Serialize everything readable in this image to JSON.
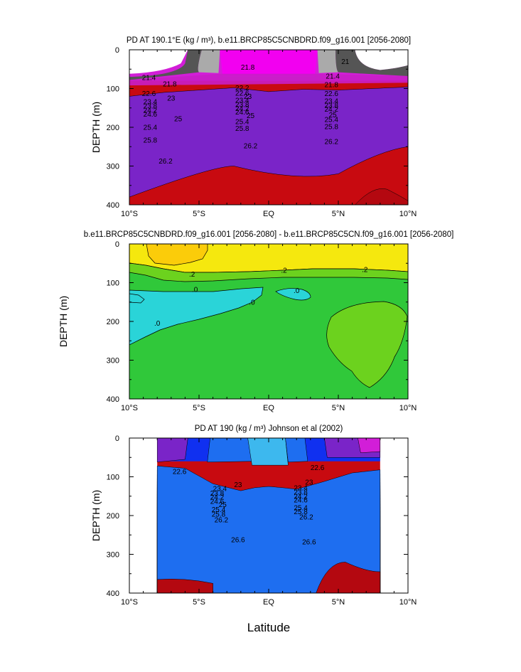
{
  "figure": {
    "xlabel": "Latitude",
    "palette": [
      "#7a24c8",
      "#3b28d2",
      "#1030f0",
      "#1e6ef0",
      "#2f95f2",
      "#3db8ee",
      "#2ad4d8",
      "#16d4a8",
      "#18c878",
      "#30c83a",
      "#6cd21e",
      "#a6dc16",
      "#d8e612",
      "#f5e80e",
      "#fbcc0a",
      "#fbac0a",
      "#fa8c0c",
      "#f86a0e",
      "#f04414",
      "#e01c14",
      "#c80a10"
    ]
  },
  "chart_data": [
    {
      "type": "contour",
      "title": "PD AT 190.1°E (kg / m³), b.e11.BRCP85C5CNBDRD.f09_g16.001 [2056-2080]",
      "ylabel": "DEPTH (m)",
      "xlim": [
        -10,
        10
      ],
      "ylim": [
        400,
        0
      ],
      "xticks": [
        "10°S",
        "5°S",
        "EQ",
        "5°N",
        "10°N"
      ],
      "yticks": [
        "0",
        "100",
        "200",
        "300",
        "400"
      ],
      "levels": [
        21,
        21.4,
        21.8,
        22.2,
        22.6,
        23,
        23.4,
        23.8,
        24.2,
        24.6,
        25,
        25.4,
        25.8,
        26.2
      ],
      "base_depth": {
        "x": [
          -10,
          -7.5,
          -5,
          -2.5,
          0,
          2.5,
          5,
          7.5,
          10
        ],
        "d": [
          120,
          110,
          104,
          98,
          108,
          102,
          104,
          100,
          96
        ]
      },
      "gap": 8,
      "contour_labels": [
        {
          "text": "21.8",
          "x": -1.5,
          "y": 45
        },
        {
          "text": "21",
          "x": 5.5,
          "y": 30
        },
        {
          "text": "21.4",
          "x": -8.6,
          "y": 72
        },
        {
          "text": "21.4",
          "x": 4.6,
          "y": 68
        },
        {
          "text": "21.8",
          "x": -7.1,
          "y": 88
        },
        {
          "text": "21.8",
          "x": 4.5,
          "y": 90
        },
        {
          "text": "22.2",
          "x": -1.9,
          "y": 98
        },
        {
          "text": "22.6",
          "x": -8.6,
          "y": 113
        },
        {
          "text": "22.6",
          "x": -1.9,
          "y": 112
        },
        {
          "text": "22.6",
          "x": 4.5,
          "y": 113
        },
        {
          "text": "23",
          "x": -7.0,
          "y": 125
        },
        {
          "text": "23",
          "x": -1.5,
          "y": 120
        },
        {
          "text": "23.4",
          "x": -8.5,
          "y": 134
        },
        {
          "text": "23.4",
          "x": -1.9,
          "y": 130
        },
        {
          "text": "23.4",
          "x": 4.5,
          "y": 132
        },
        {
          "text": "23.8",
          "x": -8.5,
          "y": 145
        },
        {
          "text": "23.8",
          "x": -1.9,
          "y": 141
        },
        {
          "text": "23.8",
          "x": 4.5,
          "y": 143
        },
        {
          "text": "24.2",
          "x": -8.5,
          "y": 156
        },
        {
          "text": "24.2",
          "x": -1.9,
          "y": 151
        },
        {
          "text": "24.2",
          "x": 4.5,
          "y": 153
        },
        {
          "text": "24.6",
          "x": -8.5,
          "y": 166
        },
        {
          "text": "24.6",
          "x": -1.9,
          "y": 161
        },
        {
          "text": "25",
          "x": -6.5,
          "y": 178
        },
        {
          "text": "25",
          "x": -1.3,
          "y": 170
        },
        {
          "text": "25",
          "x": 4.6,
          "y": 168
        },
        {
          "text": "25.4",
          "x": -8.5,
          "y": 200
        },
        {
          "text": "25.4",
          "x": -1.9,
          "y": 185
        },
        {
          "text": "25.4",
          "x": 4.5,
          "y": 180
        },
        {
          "text": "25.8",
          "x": -8.5,
          "y": 233
        },
        {
          "text": "25.8",
          "x": -1.9,
          "y": 203
        },
        {
          "text": "25.8",
          "x": 4.5,
          "y": 198
        },
        {
          "text": "26.2",
          "x": -7.4,
          "y": 287
        },
        {
          "text": "26.2",
          "x": -1.3,
          "y": 248
        },
        {
          "text": "26.2",
          "x": 4.5,
          "y": 237
        }
      ]
    },
    {
      "type": "contour",
      "title": "b.e11.BRCP85C5CNBDRD.f09_g16.001 [2056-2080] - b.e11.BRCP85C5CN.f09_g16.001 [2056-2080]",
      "ylabel": "DEPTH (m)",
      "xlim": [
        -10,
        10
      ],
      "ylim": [
        400,
        0
      ],
      "xticks": [
        "10°S",
        "5°S",
        "EQ",
        "5°N",
        "10°N"
      ],
      "yticks": [
        "0",
        "100",
        "200",
        "300",
        "400"
      ],
      "contour_labels": [
        {
          "text": ".2",
          "x": -5.5,
          "y": 78
        },
        {
          "text": ".2",
          "x": 1.1,
          "y": 68
        },
        {
          "text": ".2",
          "x": 6.9,
          "y": 66
        },
        {
          "text": ".0",
          "x": -5.3,
          "y": 117
        },
        {
          "text": ".0",
          "x": 2.0,
          "y": 120
        },
        {
          "text": ".0",
          "x": -1.2,
          "y": 150
        },
        {
          "text": ".0",
          "x": -8.0,
          "y": 205
        }
      ]
    },
    {
      "type": "contour",
      "title": "PD AT 190 (kg / m³) Johnson et al (2002)",
      "ylabel": "DEPTH (m)",
      "xlim": [
        -10,
        10
      ],
      "ylim": [
        400,
        0
      ],
      "xticks": [
        "10°S",
        "5°S",
        "EQ",
        "5°N",
        "10°N"
      ],
      "yticks": [
        "0",
        "100",
        "200",
        "300",
        "400"
      ],
      "data_xrange": [
        -8,
        8
      ],
      "levels": [
        21,
        21.4,
        21.8,
        22.2,
        22.6,
        23,
        23.4,
        23.8,
        24.2,
        24.6,
        25,
        25.4,
        25.8,
        26.2,
        26.6
      ],
      "contour_labels": [
        {
          "text": "22.6",
          "x": -6.4,
          "y": 86
        },
        {
          "text": "22.6",
          "x": 3.5,
          "y": 76
        },
        {
          "text": "23",
          "x": -2.2,
          "y": 120
        },
        {
          "text": "23",
          "x": 2.9,
          "y": 114
        },
        {
          "text": "23.4",
          "x": -3.5,
          "y": 130
        },
        {
          "text": "23.4",
          "x": 2.3,
          "y": 128
        },
        {
          "text": "23.8",
          "x": -3.7,
          "y": 142
        },
        {
          "text": "23.8",
          "x": 2.3,
          "y": 139
        },
        {
          "text": "24.2",
          "x": -3.7,
          "y": 152
        },
        {
          "text": "24.2",
          "x": 2.3,
          "y": 150
        },
        {
          "text": "24.6",
          "x": -3.7,
          "y": 163
        },
        {
          "text": "24.6",
          "x": 2.3,
          "y": 160
        },
        {
          "text": "25",
          "x": -3.3,
          "y": 172
        },
        {
          "text": "25.4",
          "x": -3.6,
          "y": 184
        },
        {
          "text": "25.4",
          "x": 2.3,
          "y": 180
        },
        {
          "text": "25.8",
          "x": -3.6,
          "y": 196
        },
        {
          "text": "25.8",
          "x": 2.3,
          "y": 190
        },
        {
          "text": "26.2",
          "x": -3.4,
          "y": 211
        },
        {
          "text": "26.2",
          "x": 2.7,
          "y": 204
        },
        {
          "text": "26.6",
          "x": -2.2,
          "y": 262
        },
        {
          "text": "26.6",
          "x": 2.9,
          "y": 268
        }
      ]
    }
  ]
}
